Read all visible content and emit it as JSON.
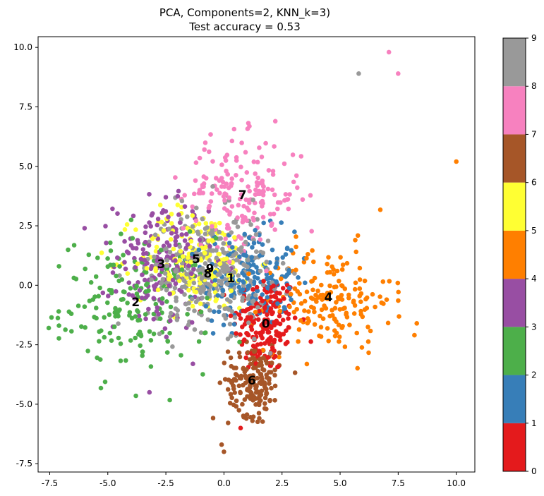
{
  "chart_data": {
    "type": "scatter",
    "title": "PCA, Components=2, KNN_k=3)",
    "subtitle": "Test accuracy = 0.53",
    "xlim": [
      -8,
      10.8
    ],
    "ylim": [
      -7.85,
      10.45
    ],
    "x_ticks": [
      "-7.5",
      "-5.0",
      "-2.5",
      "0.0",
      "2.5",
      "5.0",
      "7.5",
      "10.0"
    ],
    "x_tick_values": [
      -7.5,
      -5.0,
      -2.5,
      0.0,
      2.5,
      5.0,
      7.5,
      10.0
    ],
    "y_ticks": [
      "-7.5",
      "-5.0",
      "-2.5",
      "0.0",
      "2.5",
      "5.0",
      "7.5",
      "10.0"
    ],
    "y_tick_values": [
      -7.5,
      -5.0,
      -2.5,
      0.0,
      2.5,
      5.0,
      7.5,
      10.0
    ],
    "grid": false,
    "colorbar": {
      "colormap": "Set1",
      "range": [
        0,
        9
      ],
      "ticks": [
        "0",
        "1",
        "2",
        "3",
        "4",
        "5",
        "6",
        "7",
        "8",
        "9"
      ],
      "colors": [
        "#e41a1c",
        "#377eb8",
        "#4daf4a",
        "#984ea3",
        "#ff7f00",
        "#ffff33",
        "#a65628",
        "#f781bf",
        "#999999"
      ]
    },
    "class_colors": {
      "0": "#e41a1c",
      "1": "#377eb8",
      "2": "#4daf4a",
      "3": "#984ea3",
      "4": "#ff7f00",
      "5": "#ffff33",
      "6": "#a65628",
      "7": "#f781bf",
      "8": "#999999",
      "9": "#999999"
    },
    "series": [
      {
        "label": "0",
        "center": [
          1.8,
          -1.6
        ],
        "spread": [
          0.7,
          1.05
        ],
        "n": 180
      },
      {
        "label": "1",
        "center": [
          1.1,
          0.3
        ],
        "spread": [
          1.0,
          1.0
        ],
        "n": 190
      },
      {
        "label": "2",
        "center": [
          -3.8,
          -0.8
        ],
        "spread": [
          1.6,
          1.4
        ],
        "n": 180
      },
      {
        "label": "3",
        "center": [
          -2.7,
          0.9
        ],
        "spread": [
          1.0,
          1.4
        ],
        "n": 180
      },
      {
        "label": "4",
        "center": [
          4.5,
          -0.6
        ],
        "spread": [
          1.35,
          1.1
        ],
        "n": 180
      },
      {
        "label": "5",
        "center": [
          -1.2,
          1.1
        ],
        "spread": [
          1.3,
          1.1
        ],
        "n": 180
      },
      {
        "label": "6",
        "center": [
          1.3,
          -4.0
        ],
        "spread": [
          0.55,
          0.75
        ],
        "n": 180
      },
      {
        "label": "7",
        "center": [
          0.8,
          3.8
        ],
        "spread": [
          1.3,
          1.2
        ],
        "n": 180
      },
      {
        "label": "8",
        "center": [
          -0.7,
          0.6
        ],
        "spread": [
          1.3,
          1.2
        ],
        "n": 180
      },
      {
        "label": "9",
        "center": [
          -0.6,
          0.7
        ],
        "spread": [
          1.3,
          1.2
        ],
        "n": 180
      }
    ],
    "annotations": [
      {
        "text": "0",
        "x": 1.8,
        "y": -1.6
      },
      {
        "text": "1",
        "x": 0.3,
        "y": 0.3
      },
      {
        "text": "2",
        "x": -3.8,
        "y": -0.7
      },
      {
        "text": "3",
        "x": -2.7,
        "y": 0.9
      },
      {
        "text": "4",
        "x": 4.5,
        "y": -0.5
      },
      {
        "text": "5",
        "x": -1.2,
        "y": 1.1
      },
      {
        "text": "6",
        "x": 1.2,
        "y": -4.0
      },
      {
        "text": "7",
        "x": 0.8,
        "y": 3.8
      },
      {
        "text": "8",
        "x": -0.7,
        "y": 0.5
      },
      {
        "text": "9",
        "x": -0.6,
        "y": 0.7
      }
    ],
    "outliers": [
      {
        "label": "7",
        "x": 7.1,
        "y": 9.8
      },
      {
        "label": "7",
        "x": 7.5,
        "y": 8.9
      },
      {
        "label": "8",
        "x": 5.8,
        "y": 8.9
      },
      {
        "label": "4",
        "x": 10.0,
        "y": 5.2
      },
      {
        "label": "4",
        "x": 8.3,
        "y": -1.6
      },
      {
        "label": "4",
        "x": 8.2,
        "y": -2.1
      },
      {
        "label": "6",
        "x": 0.0,
        "y": -7.0
      },
      {
        "label": "6",
        "x": -0.1,
        "y": -6.7
      },
      {
        "label": "2",
        "x": -7.1,
        "y": 0.8
      },
      {
        "label": "2",
        "x": -7.1,
        "y": -1.7
      },
      {
        "label": "3",
        "x": -6.0,
        "y": 2.4
      }
    ]
  }
}
